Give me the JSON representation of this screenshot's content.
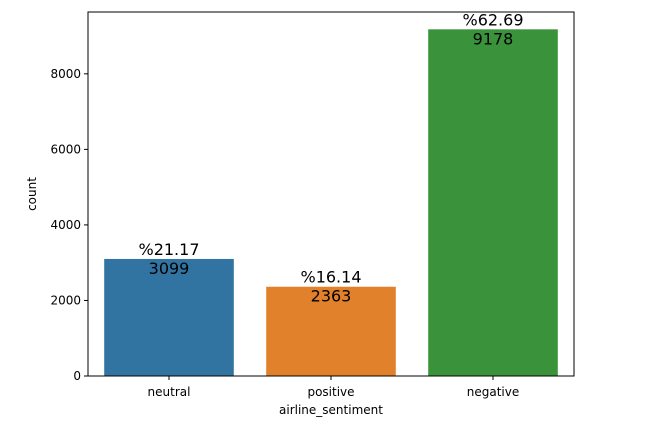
{
  "chart_data": {
    "type": "bar",
    "categories": [
      "neutral",
      "positive",
      "negative"
    ],
    "values": [
      3099,
      2363,
      9178
    ],
    "percent_labels": [
      "%21.17",
      "%16.14",
      "%62.69"
    ],
    "count_labels": [
      "3099",
      "2363",
      "9178"
    ],
    "colors": [
      "#3274a1",
      "#e1812c",
      "#3a923a"
    ],
    "xlabel": "airline_sentiment",
    "ylabel": "count",
    "ylim": [
      0,
      9637
    ],
    "yticks": [
      0,
      2000,
      4000,
      6000,
      8000
    ],
    "grid": false
  }
}
